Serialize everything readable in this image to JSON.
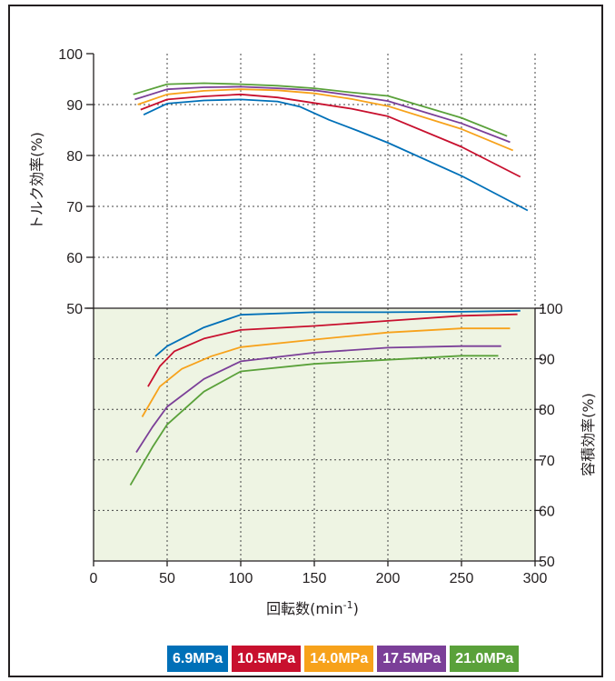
{
  "chart_data": {
    "type": "line",
    "xlabel": "回転数(min",
    "xlabel_sup": "-1",
    "xlabel_close": ")",
    "x_ticks": [
      0,
      50,
      100,
      150,
      200,
      250,
      300
    ],
    "xlim": [
      0,
      300
    ],
    "grid": true,
    "legend_placement": "bottom-right",
    "panels": [
      {
        "id": "torque",
        "ylabel": "トルク効率(%)",
        "ylim": [
          50,
          100
        ],
        "y_ticks": [
          50,
          60,
          70,
          80,
          90,
          100
        ],
        "axis_side": "left",
        "series": [
          {
            "name": "6.9MPa",
            "color": "#0070b8",
            "points": [
              [
                34,
                88
              ],
              [
                50,
                90.2
              ],
              [
                75,
                90.8
              ],
              [
                100,
                91
              ],
              [
                125,
                90.6
              ],
              [
                140,
                89.6
              ],
              [
                160,
                87
              ],
              [
                180,
                84.8
              ],
              [
                200,
                82.5
              ],
              [
                250,
                76
              ],
              [
                295,
                69.2
              ]
            ]
          },
          {
            "name": "10.5MPa",
            "color": "#c8102e",
            "points": [
              [
                32,
                89
              ],
              [
                50,
                91
              ],
              [
                75,
                91.6
              ],
              [
                100,
                92
              ],
              [
                125,
                91.4
              ],
              [
                150,
                90.3
              ],
              [
                175,
                89.2
              ],
              [
                200,
                87.7
              ],
              [
                250,
                81.7
              ],
              [
                290,
                75.8
              ]
            ]
          },
          {
            "name": "14.0MPa",
            "color": "#f7a21b",
            "points": [
              [
                30,
                90
              ],
              [
                50,
                92
              ],
              [
                75,
                92.7
              ],
              [
                100,
                93
              ],
              [
                125,
                92.8
              ],
              [
                150,
                92.2
              ],
              [
                175,
                91.1
              ],
              [
                200,
                89.7
              ],
              [
                250,
                85.2
              ],
              [
                285,
                81
              ]
            ]
          },
          {
            "name": "17.5MPa",
            "color": "#7b3f98",
            "points": [
              [
                28,
                91
              ],
              [
                50,
                93
              ],
              [
                75,
                93.4
              ],
              [
                100,
                93.5
              ],
              [
                125,
                93.2
              ],
              [
                150,
                92.8
              ],
              [
                175,
                91.8
              ],
              [
                200,
                90.7
              ],
              [
                250,
                86.3
              ],
              [
                283,
                82.6
              ]
            ]
          },
          {
            "name": "21.0MPa",
            "color": "#5aa13a",
            "points": [
              [
                27,
                92
              ],
              [
                50,
                94
              ],
              [
                75,
                94.2
              ],
              [
                100,
                94
              ],
              [
                125,
                93.7
              ],
              [
                150,
                93.2
              ],
              [
                175,
                92.4
              ],
              [
                200,
                91.7
              ],
              [
                250,
                87.4
              ],
              [
                281,
                83.8
              ]
            ]
          }
        ]
      },
      {
        "id": "volume",
        "ylabel": "容積効率(%)",
        "ylim": [
          50,
          100
        ],
        "y_ticks": [
          50,
          60,
          70,
          80,
          90,
          100
        ],
        "axis_side": "right",
        "series": [
          {
            "name": "6.9MPa",
            "color": "#0070b8",
            "points": [
              [
                42,
                90.5
              ],
              [
                50,
                92.5
              ],
              [
                75,
                96.2
              ],
              [
                100,
                98.7
              ],
              [
                150,
                99.2
              ],
              [
                200,
                99.2
              ],
              [
                250,
                99.3
              ],
              [
                290,
                99.5
              ]
            ]
          },
          {
            "name": "10.5MPa",
            "color": "#c8102e",
            "points": [
              [
                37,
                84.5
              ],
              [
                45,
                88.5
              ],
              [
                55,
                91.5
              ],
              [
                75,
                94
              ],
              [
                100,
                95.7
              ],
              [
                150,
                96.5
              ],
              [
                200,
                97.5
              ],
              [
                250,
                98.5
              ],
              [
                288,
                98.8
              ]
            ]
          },
          {
            "name": "14.0MPa",
            "color": "#f7a21b",
            "points": [
              [
                33,
                78.5
              ],
              [
                45,
                84.5
              ],
              [
                60,
                88
              ],
              [
                80,
                90.5
              ],
              [
                100,
                92.3
              ],
              [
                150,
                93.8
              ],
              [
                200,
                95.2
              ],
              [
                250,
                96
              ],
              [
                283,
                96
              ]
            ]
          },
          {
            "name": "17.5MPa",
            "color": "#7b3f98",
            "points": [
              [
                29,
                71.5
              ],
              [
                40,
                76.5
              ],
              [
                50,
                80.5
              ],
              [
                75,
                86
              ],
              [
                100,
                89.5
              ],
              [
                150,
                91.2
              ],
              [
                200,
                92.2
              ],
              [
                250,
                92.5
              ],
              [
                277,
                92.5
              ]
            ]
          },
          {
            "name": "21.0MPa",
            "color": "#5aa13a",
            "points": [
              [
                25,
                65
              ],
              [
                40,
                72.5
              ],
              [
                50,
                77
              ],
              [
                75,
                83.5
              ],
              [
                100,
                87.5
              ],
              [
                150,
                89
              ],
              [
                200,
                89.8
              ],
              [
                250,
                90.6
              ],
              [
                275,
                90.6
              ]
            ]
          }
        ]
      }
    ]
  }
}
